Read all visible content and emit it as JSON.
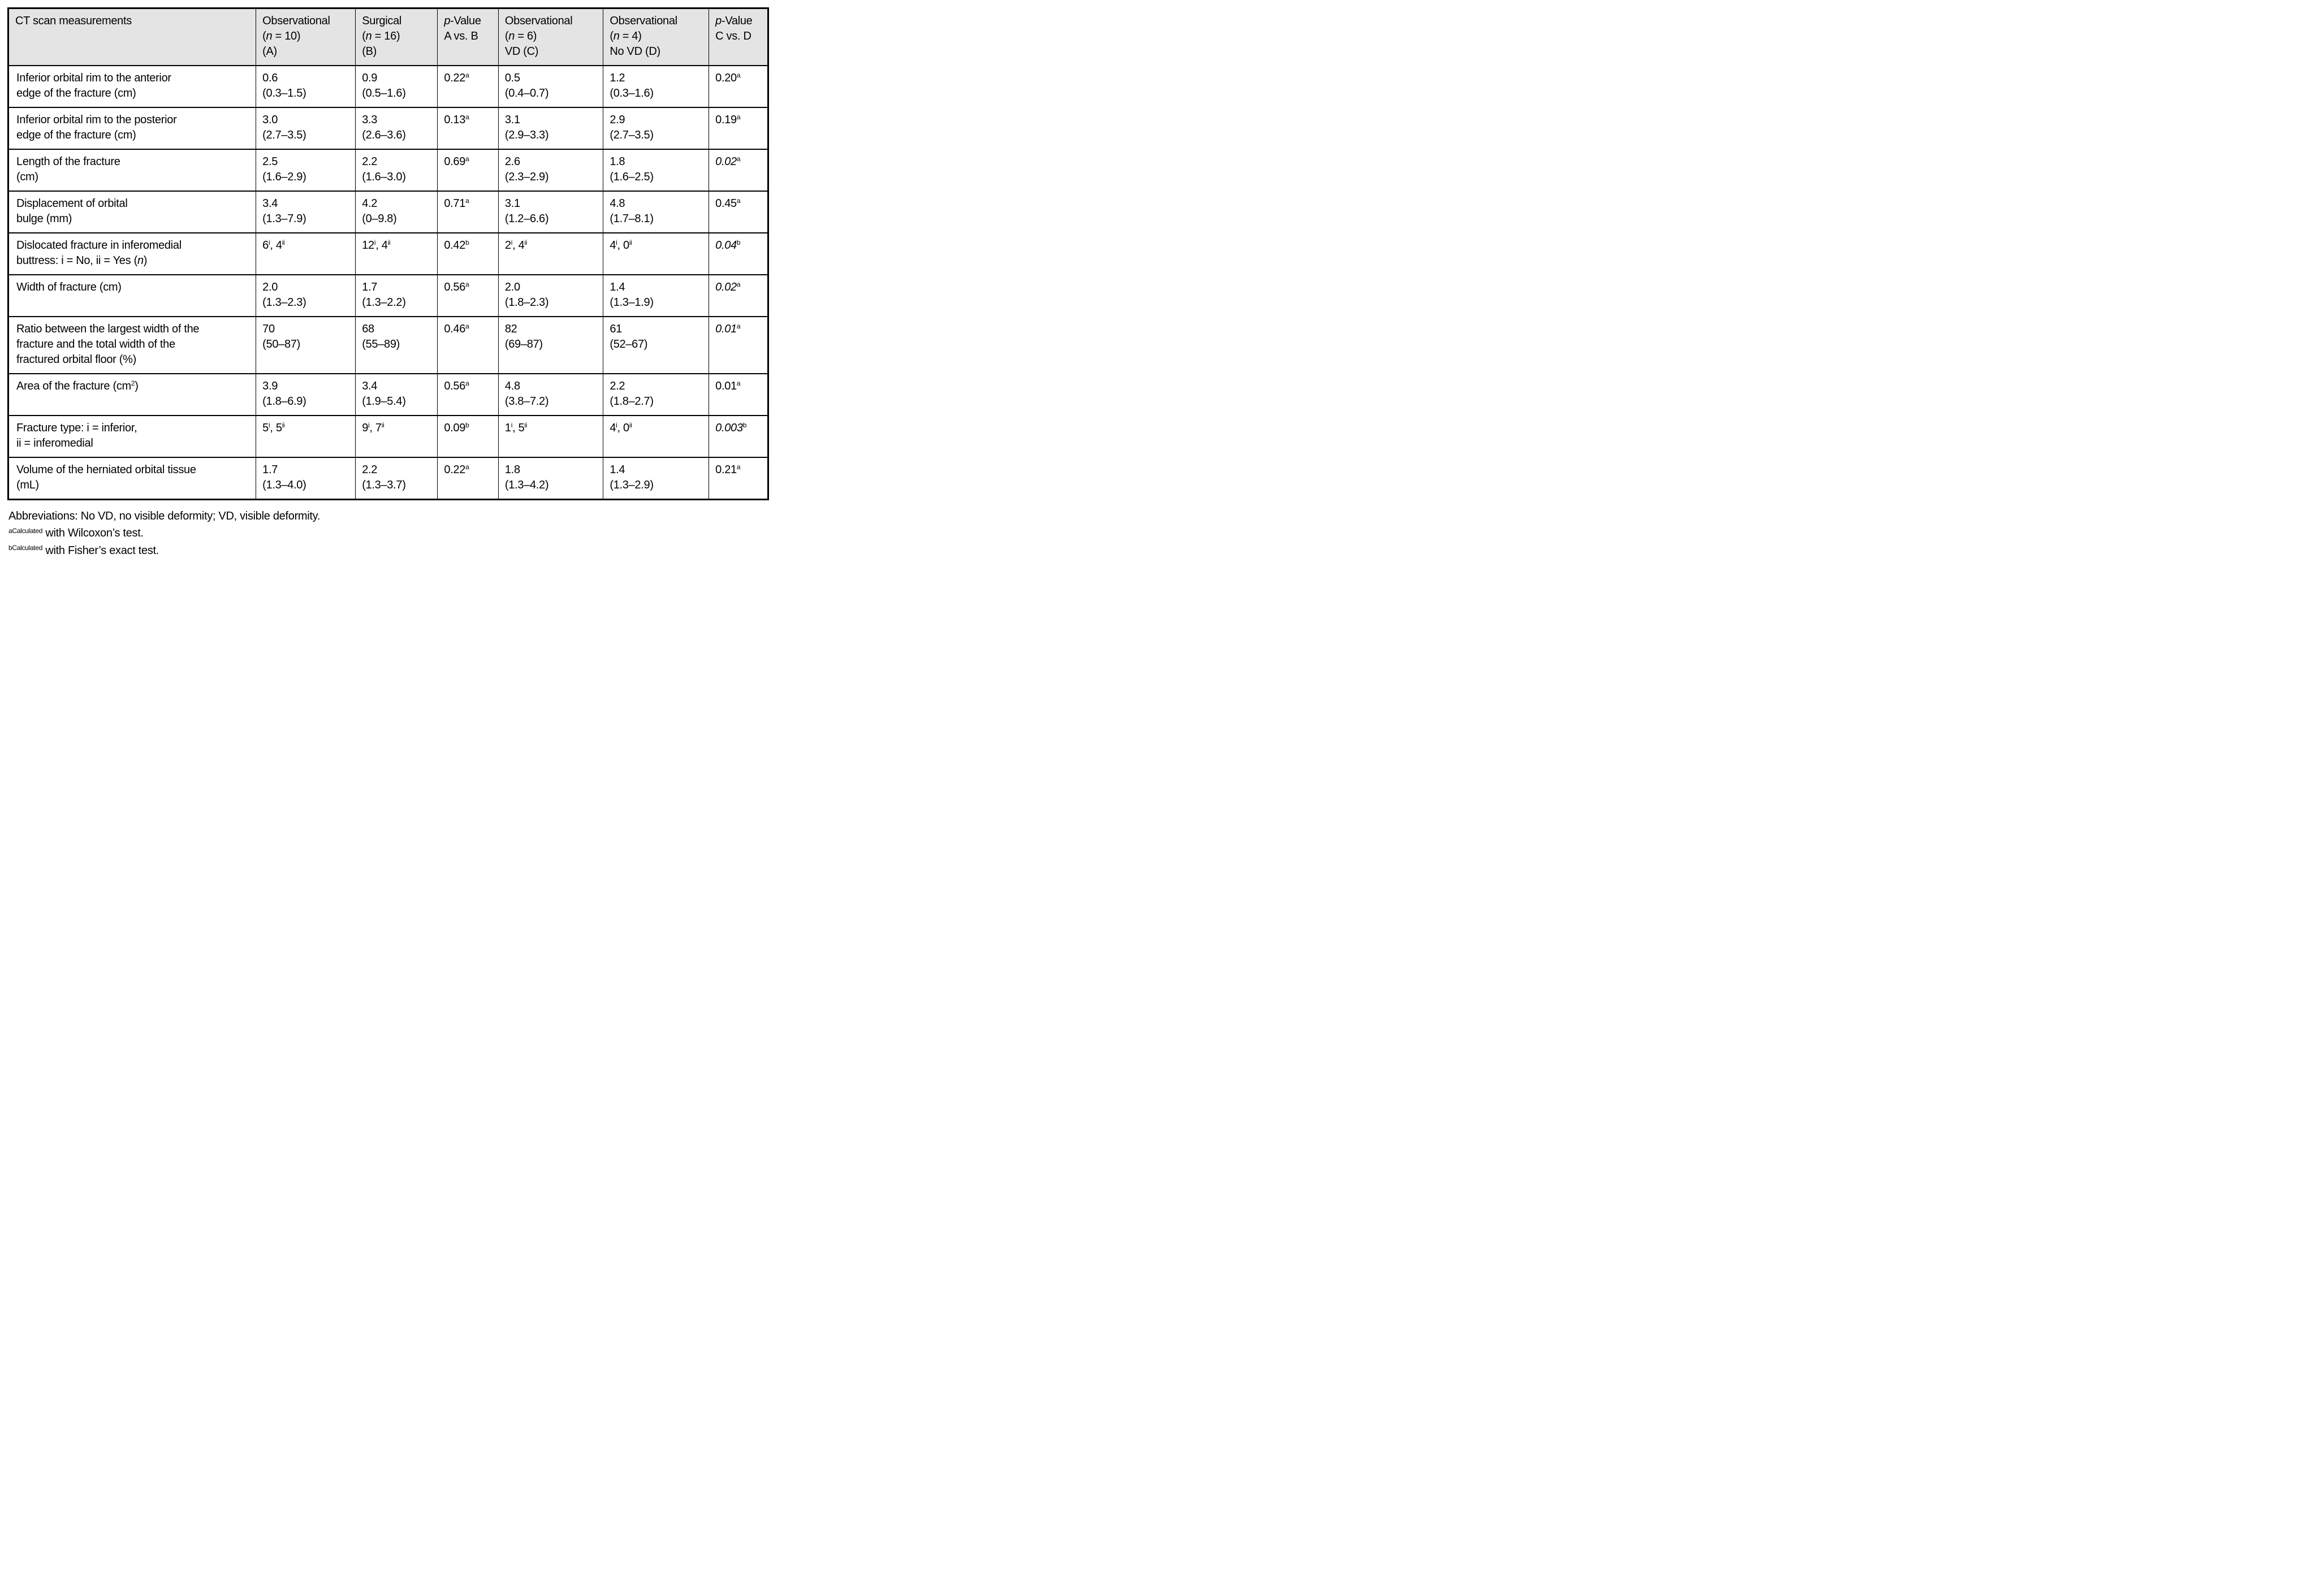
{
  "style": {
    "header_background": "#e4e4e4",
    "border_color": "#000000",
    "text_color": "#000000"
  },
  "table": {
    "title": "CT scan measurements comparison table",
    "columns": [
      {
        "lines": [
          "CT scan measurements"
        ]
      },
      {
        "lines": [
          "Observational",
          "(*n* = 10)",
          "(A)"
        ]
      },
      {
        "lines": [
          "Surgical",
          "(*n* = 16)",
          "(B)"
        ]
      },
      {
        "lines": [
          "*p*-Value",
          "A vs. B"
        ]
      },
      {
        "lines": [
          "Observational",
          "(*n* = 6)",
          "VD (C)"
        ]
      },
      {
        "lines": [
          "Observational",
          "(*n* = 4)",
          "No VD (D)"
        ]
      },
      {
        "lines": [
          "*p*-Value",
          "C vs. D"
        ]
      }
    ],
    "rows": [
      {
        "label": [
          "Inferior orbital rim to the anterior",
          "edge of the fracture (cm)"
        ],
        "cells": [
          [
            "0.6",
            "(0.3–1.5)"
          ],
          [
            "0.9",
            "(0.5–1.6)"
          ],
          [
            "0.22^a"
          ],
          [
            "0.5",
            "(0.4–0.7)"
          ],
          [
            "1.2",
            "(0.3–1.6)"
          ],
          [
            "0.20^a"
          ]
        ]
      },
      {
        "label": [
          "Inferior orbital rim to the posterior",
          "edge of the fracture (cm)"
        ],
        "cells": [
          [
            "3.0",
            "(2.7–3.5)"
          ],
          [
            "3.3",
            "(2.6–3.6)"
          ],
          [
            "0.13^a"
          ],
          [
            "3.1",
            "(2.9–3.3)"
          ],
          [
            "2.9",
            "(2.7–3.5)"
          ],
          [
            "0.19^a"
          ]
        ]
      },
      {
        "label": [
          "Length of the fracture",
          "(cm)"
        ],
        "cells": [
          [
            "2.5",
            "(1.6–2.9)"
          ],
          [
            "2.2",
            "(1.6–3.0)"
          ],
          [
            "0.69^a"
          ],
          [
            "2.6",
            "(2.3–2.9)"
          ],
          [
            "1.8",
            "(1.6–2.5)"
          ],
          [
            "*0.02*^a"
          ]
        ]
      },
      {
        "label": [
          "Displacement of orbital",
          "bulge (mm)"
        ],
        "cells": [
          [
            "3.4",
            "(1.3–7.9)"
          ],
          [
            "4.2",
            "(0–9.8)"
          ],
          [
            "0.71^a"
          ],
          [
            "3.1",
            "(1.2–6.6)"
          ],
          [
            "4.8",
            "(1.7–8.1)"
          ],
          [
            "0.45^a"
          ]
        ]
      },
      {
        "label": [
          "Dislocated fracture in inferomedial",
          "buttress: i = No, ii = Yes (*n*)"
        ],
        "cells": [
          [
            "6^i, 4^ii"
          ],
          [
            "12^i, 4^ii"
          ],
          [
            "0.42^b"
          ],
          [
            "2^i, 4^ii"
          ],
          [
            "4^i, 0^ii"
          ],
          [
            "*0.04*^b"
          ]
        ]
      },
      {
        "label": [
          "Width of fracture (cm)"
        ],
        "cells": [
          [
            "2.0",
            "(1.3–2.3)"
          ],
          [
            "1.7",
            "(1.3–2.2)"
          ],
          [
            "0.56^a"
          ],
          [
            "2.0",
            "(1.8–2.3)"
          ],
          [
            "1.4",
            "(1.3–1.9)"
          ],
          [
            "*0.02*^a"
          ]
        ]
      },
      {
        "label": [
          "Ratio between the largest width of the",
          "fracture and the total width of the",
          "fractured orbital floor (%)"
        ],
        "cells": [
          [
            "70",
            "(50–87)"
          ],
          [
            "68",
            "(55–89)"
          ],
          [
            "0.46^a"
          ],
          [
            "82",
            "(69–87)"
          ],
          [
            "61",
            "(52–67)"
          ],
          [
            "*0.01*^a"
          ]
        ]
      },
      {
        "label": [
          "Area of the fracture (cm^2)"
        ],
        "cells": [
          [
            "3.9",
            "(1.8–6.9)"
          ],
          [
            "3.4",
            "(1.9–5.4)"
          ],
          [
            "0.56^a"
          ],
          [
            "4.8",
            "(3.8–7.2)"
          ],
          [
            "2.2",
            "(1.8–2.7)"
          ],
          [
            "0.01^a"
          ]
        ]
      },
      {
        "label": [
          "Fracture type: i = inferior,",
          "ii = inferomedial"
        ],
        "cells": [
          [
            "5^i, 5^ii"
          ],
          [
            "9^i, 7^ii"
          ],
          [
            "0.09^b"
          ],
          [
            "1^i, 5^ii"
          ],
          [
            "4^i, 0^ii"
          ],
          [
            "*0.003*^b"
          ]
        ]
      },
      {
        "label": [
          "Volume of the herniated orbital tissue",
          "(mL)"
        ],
        "cells": [
          [
            "1.7",
            "(1.3–4.0)"
          ],
          [
            "2.2",
            "(1.3–3.7)"
          ],
          [
            "0.22^a"
          ],
          [
            "1.8",
            "(1.3–4.2)"
          ],
          [
            "1.4",
            "(1.3–2.9)"
          ],
          [
            "0.21^a"
          ]
        ]
      }
    ]
  },
  "footnotes": [
    "Abbreviations: No VD, no visible deformity; VD, visible deformity.",
    "^aCalculated with Wilcoxon’s test.",
    "^bCalculated with Fisher’s exact test."
  ]
}
